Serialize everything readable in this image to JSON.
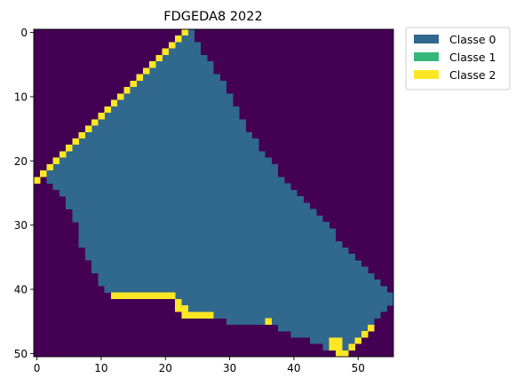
{
  "chart_data": {
    "type": "heatmap",
    "title": "FDGEDA8 2022",
    "xlabel": "",
    "ylabel": "",
    "xlim": [
      -0.5,
      55.5
    ],
    "ylim": [
      50.5,
      -0.5
    ],
    "x_ticks": [
      0,
      10,
      20,
      30,
      40,
      50
    ],
    "y_ticks": [
      0,
      10,
      20,
      30,
      40,
      50
    ],
    "grid": false,
    "legend_position": "outside-top-right",
    "background_color": "#440154",
    "legend": [
      {
        "label": "Classe 0",
        "color": "#31688e"
      },
      {
        "label": "Classe 1",
        "color": "#35b779"
      },
      {
        "label": "Classe 2",
        "color": "#fde725"
      }
    ],
    "rows": [
      {
        "r": 0,
        "c0": [
          [
            24,
            24
          ]
        ],
        "c2": [
          [
            23,
            23
          ]
        ]
      },
      {
        "r": 1,
        "c0": [
          [
            23,
            24
          ]
        ],
        "c2": [
          [
            22,
            22
          ]
        ]
      },
      {
        "r": 2,
        "c0": [
          [
            22,
            25
          ]
        ],
        "c2": [
          [
            21,
            21
          ]
        ]
      },
      {
        "r": 3,
        "c0": [
          [
            21,
            25
          ]
        ],
        "c2": [
          [
            20,
            20
          ]
        ]
      },
      {
        "r": 4,
        "c0": [
          [
            20,
            26
          ]
        ],
        "c2": [
          [
            19,
            19
          ]
        ]
      },
      {
        "r": 5,
        "c0": [
          [
            19,
            27
          ]
        ],
        "c2": [
          [
            18,
            18
          ]
        ]
      },
      {
        "r": 6,
        "c0": [
          [
            18,
            27
          ]
        ],
        "c2": [
          [
            17,
            17
          ]
        ]
      },
      {
        "r": 7,
        "c0": [
          [
            17,
            28
          ]
        ],
        "c2": [
          [
            16,
            16
          ]
        ]
      },
      {
        "r": 8,
        "c0": [
          [
            16,
            29
          ]
        ],
        "c2": [
          [
            15,
            15
          ]
        ]
      },
      {
        "r": 9,
        "c0": [
          [
            15,
            29
          ]
        ],
        "c2": [
          [
            14,
            14
          ]
        ]
      },
      {
        "r": 10,
        "c0": [
          [
            14,
            30
          ]
        ],
        "c2": [
          [
            13,
            13
          ]
        ]
      },
      {
        "r": 11,
        "c0": [
          [
            13,
            30
          ]
        ],
        "c2": [
          [
            12,
            12
          ]
        ]
      },
      {
        "r": 12,
        "c0": [
          [
            12,
            31
          ]
        ],
        "c2": [
          [
            11,
            11
          ]
        ]
      },
      {
        "r": 13,
        "c0": [
          [
            11,
            31
          ]
        ],
        "c2": [
          [
            10,
            10
          ]
        ]
      },
      {
        "r": 14,
        "c0": [
          [
            10,
            32
          ]
        ],
        "c2": [
          [
            9,
            9
          ]
        ]
      },
      {
        "r": 15,
        "c0": [
          [
            9,
            32
          ]
        ],
        "c2": [
          [
            8,
            8
          ]
        ]
      },
      {
        "r": 16,
        "c0": [
          [
            8,
            33
          ]
        ],
        "c2": [
          [
            7,
            7
          ]
        ]
      },
      {
        "r": 17,
        "c0": [
          [
            7,
            34
          ]
        ],
        "c2": [
          [
            6,
            6
          ]
        ]
      },
      {
        "r": 18,
        "c0": [
          [
            6,
            34
          ]
        ],
        "c2": [
          [
            5,
            5
          ]
        ]
      },
      {
        "r": 19,
        "c0": [
          [
            5,
            35
          ]
        ],
        "c2": [
          [
            4,
            4
          ]
        ]
      },
      {
        "r": 20,
        "c0": [
          [
            4,
            36
          ]
        ],
        "c2": [
          [
            3,
            3
          ]
        ]
      },
      {
        "r": 21,
        "c0": [
          [
            3,
            37
          ]
        ],
        "c2": [
          [
            2,
            2
          ]
        ]
      },
      {
        "r": 22,
        "c0": [
          [
            2,
            37
          ]
        ],
        "c2": [
          [
            1,
            1
          ]
        ]
      },
      {
        "r": 23,
        "c0": [
          [
            2,
            38
          ]
        ],
        "c2": [
          [
            0,
            0
          ]
        ]
      },
      {
        "r": 24,
        "c0": [
          [
            3,
            39
          ]
        ],
        "c2": []
      },
      {
        "r": 25,
        "c0": [
          [
            4,
            40
          ]
        ],
        "c2": []
      },
      {
        "r": 26,
        "c0": [
          [
            5,
            41
          ]
        ],
        "c2": []
      },
      {
        "r": 27,
        "c0": [
          [
            5,
            42
          ]
        ],
        "c2": []
      },
      {
        "r": 28,
        "c0": [
          [
            6,
            43
          ]
        ],
        "c2": []
      },
      {
        "r": 29,
        "c0": [
          [
            6,
            44
          ]
        ],
        "c2": []
      },
      {
        "r": 30,
        "c0": [
          [
            7,
            45
          ]
        ],
        "c2": []
      },
      {
        "r": 31,
        "c0": [
          [
            7,
            46
          ]
        ],
        "c2": []
      },
      {
        "r": 32,
        "c0": [
          [
            7,
            46
          ]
        ],
        "c2": []
      },
      {
        "r": 33,
        "c0": [
          [
            7,
            47
          ]
        ],
        "c2": []
      },
      {
        "r": 34,
        "c0": [
          [
            8,
            48
          ]
        ],
        "c2": []
      },
      {
        "r": 35,
        "c0": [
          [
            8,
            49
          ]
        ],
        "c2": []
      },
      {
        "r": 36,
        "c0": [
          [
            9,
            50
          ]
        ],
        "c2": []
      },
      {
        "r": 37,
        "c0": [
          [
            9,
            51
          ]
        ],
        "c2": []
      },
      {
        "r": 38,
        "c0": [
          [
            10,
            52
          ]
        ],
        "c2": []
      },
      {
        "r": 39,
        "c0": [
          [
            10,
            53
          ]
        ],
        "c2": []
      },
      {
        "r": 40,
        "c0": [
          [
            11,
            54
          ]
        ],
        "c2": []
      },
      {
        "r": 41,
        "c0": [
          [
            22,
            55
          ]
        ],
        "c2": [
          [
            12,
            21
          ]
        ]
      },
      {
        "r": 42,
        "c0": [
          [
            23,
            55
          ]
        ],
        "c2": [
          [
            22,
            22
          ]
        ]
      },
      {
        "r": 43,
        "c0": [
          [
            24,
            54
          ]
        ],
        "c2": [
          [
            22,
            23
          ]
        ]
      },
      {
        "r": 44,
        "c0": [
          [
            28,
            53
          ]
        ],
        "c2": [
          [
            23,
            27
          ]
        ]
      },
      {
        "r": 45,
        "c0": [
          [
            30,
            35
          ],
          [
            37,
            52
          ]
        ],
        "c2": [
          [
            36,
            36
          ]
        ]
      },
      {
        "r": 46,
        "c0": [
          [
            38,
            51
          ]
        ],
        "c2": [
          [
            52,
            52
          ]
        ]
      },
      {
        "r": 47,
        "c0": [
          [
            40,
            50
          ]
        ],
        "c2": [
          [
            51,
            51
          ]
        ]
      },
      {
        "r": 48,
        "c0": [
          [
            43,
            45
          ],
          [
            48,
            49
          ]
        ],
        "c2": [
          [
            46,
            47
          ],
          [
            50,
            50
          ]
        ]
      },
      {
        "r": 49,
        "c0": [
          [
            45,
            45
          ],
          [
            48,
            48
          ]
        ],
        "c2": [
          [
            46,
            47
          ],
          [
            49,
            49
          ]
        ]
      },
      {
        "r": 50,
        "c0": [],
        "c2": [
          [
            47,
            48
          ]
        ]
      }
    ]
  }
}
